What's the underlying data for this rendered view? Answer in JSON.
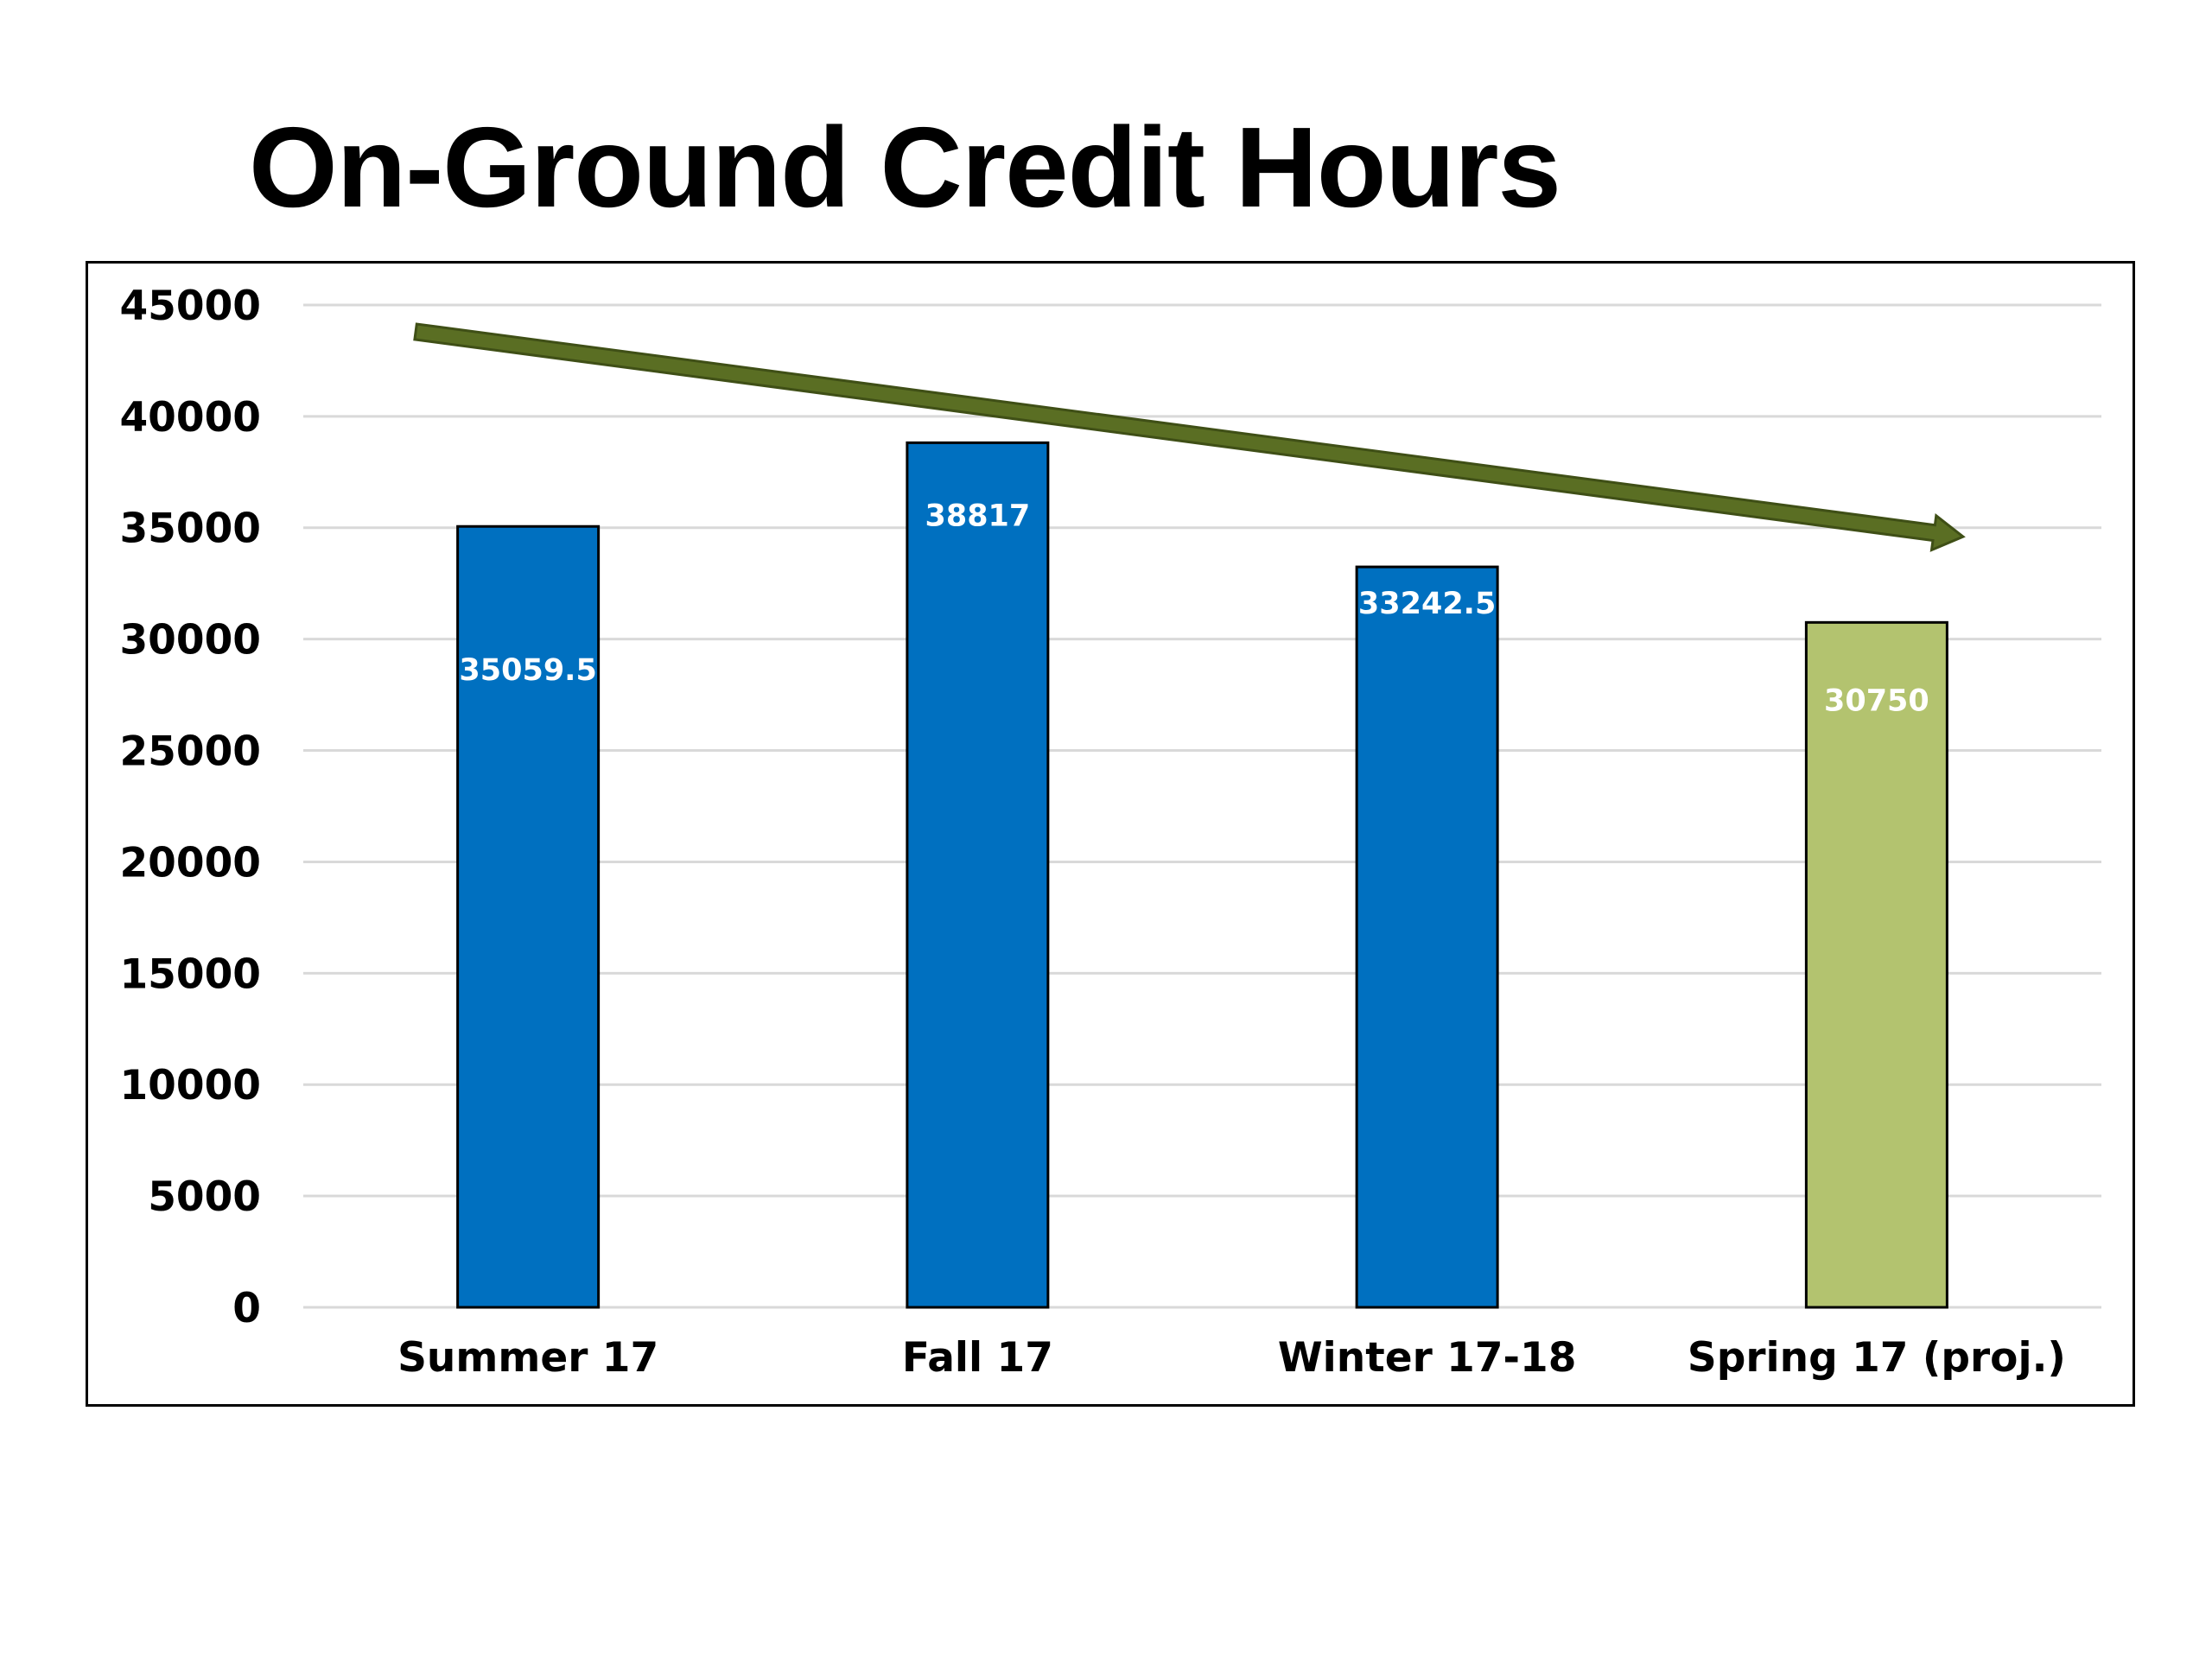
{
  "chart_data": {
    "type": "bar",
    "title": "On-Ground Credit Hours",
    "xlabel": "",
    "ylabel": "",
    "categories": [
      "Summer 17",
      "Fall 17",
      "Winter 17-18",
      "Spring 17 (proj.)"
    ],
    "values": [
      35059.5,
      38817,
      33242.5,
      30750
    ],
    "data_labels": [
      "35059.5",
      "38817",
      "33242.5",
      "30750"
    ],
    "bar_colors": [
      "#0070c0",
      "#0070c0",
      "#0070c0",
      "#b3c36f"
    ],
    "ylim": [
      0,
      45000
    ],
    "yticks": [
      0,
      5000,
      10000,
      15000,
      20000,
      25000,
      30000,
      35000,
      40000,
      45000
    ],
    "grid": true,
    "legend": "none",
    "trend_arrow": {
      "color": "#5a6e23",
      "direction": "down",
      "start": {
        "category_index": 0,
        "value": 43800
      },
      "end": {
        "category_index": 3,
        "value": 34600
      }
    }
  }
}
